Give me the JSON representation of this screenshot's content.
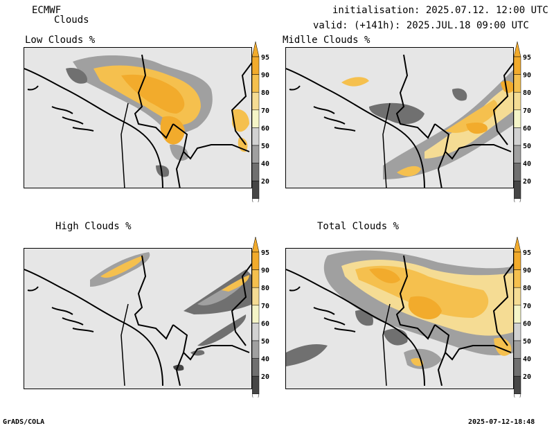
{
  "header": {
    "model": "ECMWF",
    "parameter": "Clouds",
    "initialisation": "initialisation: 2025.07.12. 12:00 UTC",
    "valid": "valid: (+141h): 2025.JUL.18 09:00 UTC"
  },
  "panels": [
    {
      "title": "Low Clouds %"
    },
    {
      "title": "Midlle Clouds %"
    },
    {
      "title": "High Clouds %"
    },
    {
      "title": "Total Clouds %"
    }
  ],
  "colorbar": {
    "levels": [
      "95",
      "90",
      "80",
      "70",
      "60",
      "50",
      "40",
      "20"
    ],
    "colors": [
      "#f2ab2c",
      "#f5c04e",
      "#f5dc94",
      "#f5f5c8",
      "#d2d2d2",
      "#a0a0a0",
      "#707070",
      "#464646"
    ],
    "below_color": "#ffffff",
    "above_color": "#f2ab2c"
  },
  "footer": {
    "left": "GrADS/COLA",
    "right": "2025-07-12-18:48"
  }
}
